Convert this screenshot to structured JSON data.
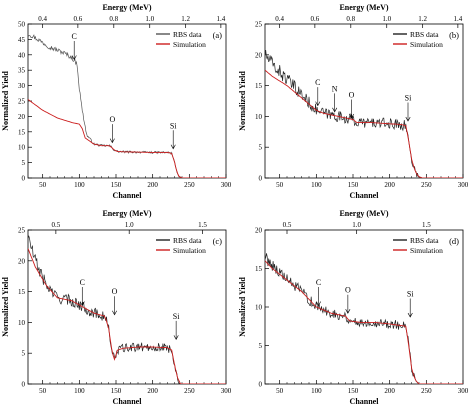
{
  "chart_data": [
    {
      "type": "line",
      "panel_label": "(a)",
      "xlabel": "Channel",
      "ylabel": "Normalized Yield",
      "top_axis_label": "Energy (MeV)",
      "xlim": [
        30,
        300
      ],
      "ylim": [
        0,
        50
      ],
      "xticks": [
        50,
        100,
        150,
        200,
        250,
        300
      ],
      "yticks": [
        0,
        5,
        10,
        15,
        20,
        25,
        30,
        35,
        40,
        45,
        50
      ],
      "top_ticks": [
        {
          "label": "0.4",
          "ch": 50
        },
        {
          "label": "0.6",
          "ch": 98
        },
        {
          "label": "0.8",
          "ch": 147
        },
        {
          "label": "1.0",
          "ch": 196
        },
        {
          "label": "1.2",
          "ch": 245
        },
        {
          "label": "1.4",
          "ch": 293
        }
      ],
      "legend": {
        "placement": "top-right"
      },
      "annotations": [
        {
          "label": "C",
          "x": 93,
          "y": 38
        },
        {
          "label": "O",
          "x": 145,
          "y": 11
        },
        {
          "label": "Si",
          "x": 228,
          "y": 9
        }
      ],
      "series": [
        {
          "name": "RBS data",
          "color": "#555555",
          "noise": 0.25,
          "x": [
            30,
            40,
            50,
            60,
            70,
            80,
            90,
            97,
            100,
            104,
            110,
            120,
            130,
            140,
            143,
            147,
            152,
            160,
            180,
            200,
            220,
            226,
            230,
            233,
            236,
            240
          ],
          "y": [
            47,
            45.5,
            44,
            42.5,
            41.5,
            40.5,
            39,
            37,
            29,
            22,
            14,
            11,
            10.5,
            10.5,
            10.2,
            9.2,
            8.6,
            8.5,
            8.4,
            8.3,
            8.3,
            8,
            5,
            2,
            0.5,
            0
          ]
        },
        {
          "name": "Simulation",
          "color": "#cc1f1f",
          "noise": 0,
          "x": [
            30,
            50,
            70,
            90,
            100,
            104,
            108,
            120,
            130,
            140,
            143,
            147,
            152,
            160,
            180,
            200,
            220,
            226,
            230,
            233,
            236,
            240
          ],
          "y": [
            25.5,
            22,
            19.5,
            18,
            17.5,
            16,
            13,
            11,
            10.5,
            10.5,
            10.2,
            9.2,
            8.6,
            8.5,
            8.4,
            8.3,
            8.3,
            8,
            5,
            2,
            0.5,
            0
          ]
        }
      ]
    },
    {
      "type": "line",
      "panel_label": "(b)",
      "xlabel": "Channel",
      "ylabel": "Normalized Yield",
      "top_axis_label": "Energy (MeV)",
      "xlim": [
        30,
        300
      ],
      "ylim": [
        0,
        25
      ],
      "xticks": [
        50,
        100,
        150,
        200,
        250,
        300
      ],
      "yticks": [
        0,
        5,
        10,
        15,
        20,
        25
      ],
      "top_ticks": [
        {
          "label": "0.4",
          "ch": 50
        },
        {
          "label": "0.6",
          "ch": 98
        },
        {
          "label": "0.8",
          "ch": 147
        },
        {
          "label": "1.0",
          "ch": 196
        },
        {
          "label": "1.2",
          "ch": 245
        },
        {
          "label": "1.4",
          "ch": 293
        }
      ],
      "legend": {
        "placement": "top-right"
      },
      "annotations": [
        {
          "label": "C",
          "x": 102,
          "y": 11.5
        },
        {
          "label": "N",
          "x": 125,
          "y": 10.5
        },
        {
          "label": "O",
          "x": 148,
          "y": 9.5
        },
        {
          "label": "Si",
          "x": 225,
          "y": 9
        }
      ],
      "series": [
        {
          "name": "RBS data",
          "color": "#222222",
          "noise": 0.6,
          "x": [
            30,
            40,
            60,
            80,
            100,
            110,
            130,
            150,
            155,
            175,
            200,
            215,
            222,
            226,
            230,
            235,
            240,
            245
          ],
          "y": [
            20,
            18.5,
            16,
            13.5,
            11,
            10.5,
            10,
            9.5,
            9,
            9,
            8.8,
            8.7,
            8.5,
            6,
            3,
            1,
            0.2,
            0
          ]
        },
        {
          "name": "Simulation",
          "color": "#cc1f1f",
          "noise": 0,
          "x": [
            30,
            40,
            60,
            80,
            100,
            110,
            130,
            150,
            155,
            175,
            200,
            215,
            222,
            226,
            230,
            235,
            240,
            245
          ],
          "y": [
            17.5,
            16.5,
            15,
            13,
            11,
            10.5,
            10,
            9.5,
            9,
            9,
            8.8,
            8.7,
            8.5,
            6,
            3,
            1,
            0.2,
            0
          ]
        }
      ]
    },
    {
      "type": "line",
      "panel_label": "(c)",
      "xlabel": "Channel",
      "ylabel": "Normalized Yield",
      "top_axis_label": "Energy (MeV)",
      "xlim": [
        30,
        300
      ],
      "ylim": [
        0,
        25
      ],
      "xticks": [
        50,
        100,
        150,
        200,
        250,
        300
      ],
      "yticks": [
        0,
        5,
        10,
        15,
        20,
        25
      ],
      "top_ticks": [
        {
          "label": "0.5",
          "ch": 68
        },
        {
          "label": "1.0",
          "ch": 168
        },
        {
          "label": "1.5",
          "ch": 268
        }
      ],
      "legend": {
        "placement": "top-right"
      },
      "annotations": [
        {
          "label": "C",
          "x": 104,
          "y": 12.5
        },
        {
          "label": "O",
          "x": 148,
          "y": 11
        },
        {
          "label": "Si",
          "x": 232,
          "y": 7
        }
      ],
      "series": [
        {
          "name": "RBS data",
          "color": "#222222",
          "noise": 0.55,
          "x": [
            30,
            40,
            55,
            70,
            90,
            105,
            120,
            135,
            140,
            145,
            148,
            152,
            160,
            180,
            200,
            220,
            226,
            230,
            234,
            238
          ],
          "y": [
            24,
            20,
            16,
            14,
            13.5,
            12.5,
            11.5,
            11,
            9,
            5,
            4,
            5.5,
            5.8,
            6,
            6,
            5.9,
            5.5,
            3,
            1,
            0
          ]
        },
        {
          "name": "Simulation",
          "color": "#cc1f1f",
          "noise": 0,
          "x": [
            30,
            40,
            55,
            70,
            90,
            105,
            120,
            135,
            140,
            145,
            148,
            152,
            160,
            180,
            200,
            220,
            226,
            230,
            234,
            238
          ],
          "y": [
            22,
            19,
            16,
            14,
            13.5,
            12.5,
            11.5,
            11,
            9,
            5,
            4,
            5.5,
            5.8,
            6,
            6,
            5.9,
            5.5,
            3,
            1,
            0
          ]
        }
      ]
    },
    {
      "type": "line",
      "panel_label": "(d)",
      "xlabel": "Channel",
      "ylabel": "Normalized Yield",
      "top_axis_label": "Energy (MeV)",
      "xlim": [
        30,
        300
      ],
      "ylim": [
        0,
        20
      ],
      "xticks": [
        50,
        100,
        150,
        200,
        250,
        300
      ],
      "yticks": [
        0,
        5,
        10,
        15,
        20
      ],
      "top_ticks": [
        {
          "label": "0.5",
          "ch": 60
        },
        {
          "label": "1.0",
          "ch": 155
        },
        {
          "label": "1.5",
          "ch": 250
        }
      ],
      "legend": {
        "placement": "top-right"
      },
      "annotations": [
        {
          "label": "C",
          "x": 103,
          "y": 10
        },
        {
          "label": "O",
          "x": 143,
          "y": 9
        },
        {
          "label": "Si",
          "x": 228,
          "y": 8.5
        }
      ],
      "series": [
        {
          "name": "RBS data",
          "color": "#222222",
          "noise": 0.45,
          "x": [
            30,
            40,
            60,
            80,
            100,
            120,
            140,
            145,
            160,
            180,
            200,
            222,
            226,
            230,
            235,
            240
          ],
          "y": [
            16.5,
            15.5,
            13.5,
            12,
            10,
            9.2,
            8.8,
            8.2,
            8,
            8,
            7.8,
            7.5,
            5,
            2,
            0.5,
            0
          ]
        },
        {
          "name": "Simulation",
          "color": "#cc1f1f",
          "noise": 0,
          "x": [
            30,
            40,
            60,
            80,
            100,
            120,
            140,
            145,
            160,
            180,
            200,
            222,
            226,
            230,
            235,
            240
          ],
          "y": [
            16,
            15,
            13.5,
            12,
            10,
            9.2,
            8.8,
            8.2,
            8,
            8,
            7.8,
            7.5,
            5,
            2,
            0.5,
            0
          ]
        }
      ]
    }
  ]
}
